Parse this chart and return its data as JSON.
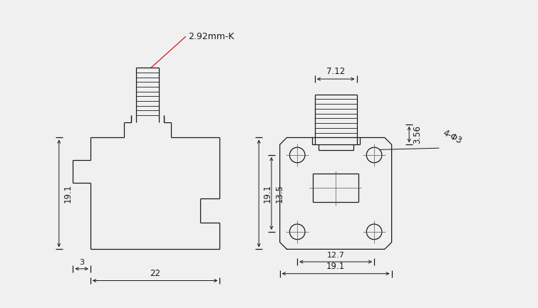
{
  "bg_color": "#f0f0f0",
  "line_color": "#1a1a1a",
  "red_line_color": "#cc0000",
  "figsize": [
    7.55,
    4.33
  ],
  "dpi": 100,
  "lw": 0.9,
  "font_size": 8.5
}
